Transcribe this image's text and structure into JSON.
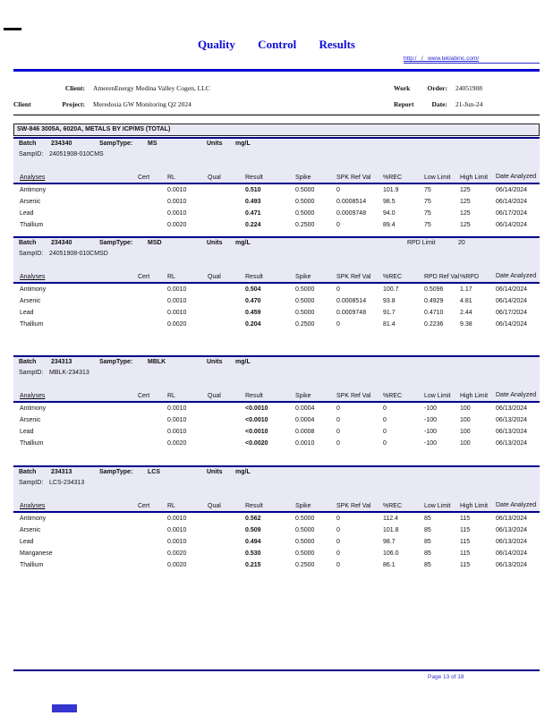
{
  "page": {
    "title": "Quality Control Results",
    "url": "http:/   /   www.teklabinc.com/",
    "page_footer": "Page 13 of 18"
  },
  "header": {
    "client_label": "Client:",
    "client_value": "AmerenEnergy Medina Valley Cogen, LLC",
    "project_label_word1": "Client",
    "project_label_word2": "Project:",
    "project_value": "Meredosia GW Monitoring Q2 2024",
    "work_order_word1": "Work",
    "work_order_word2": "Order:",
    "work_order_value": "24051908",
    "report_date_word1": "Report",
    "report_date_word2": "Date:",
    "report_date_value": "21-Jun-24"
  },
  "sections": [
    {
      "method_bar": "SW-846 3005A, 6020A, METALS BY ICP/MS (TOTAL)",
      "batch_label": "Batch",
      "batch": "234340",
      "samptype_label": "SampType:",
      "samptype": "MS",
      "units_label": "Units",
      "units": "mg/L",
      "rpd_limit_label": "",
      "rpd_limit": "",
      "sampid_label": "SampID:",
      "sampid": "24051908-010CMS",
      "columns": [
        "Analyses",
        "Cert",
        "RL",
        "Qual",
        "Result",
        "Spike",
        "SPK Ref Val",
        "%REC",
        "Low Limit",
        "High Limit",
        "Date Analyzed"
      ],
      "rows": [
        [
          "Antimony",
          "",
          "0.0010",
          "",
          "0.510",
          "0.5000",
          "0",
          "101.9",
          "75",
          "125",
          "06/14/2024"
        ],
        [
          "Arsenic",
          "",
          "0.0010",
          "",
          "0.493",
          "0.5000",
          "0.0008514",
          "98.5",
          "75",
          "125",
          "06/14/2024"
        ],
        [
          "Lead",
          "",
          "0.0010",
          "",
          "0.471",
          "0.5000",
          "0.0009748",
          "94.0",
          "75",
          "125",
          "06/17/2024"
        ],
        [
          "Thallium",
          "",
          "0.0020",
          "",
          "0.224",
          "0.2500",
          "0",
          "89.4",
          "75",
          "125",
          "06/14/2024"
        ]
      ]
    },
    {
      "method_bar": "",
      "batch_label": "Batch",
      "batch": "234340",
      "samptype_label": "SampType:",
      "samptype": "MSD",
      "units_label": "Units",
      "units": "mg/L",
      "rpd_limit_label": "RPD Limit",
      "rpd_limit": "20",
      "sampid_label": "SampID:",
      "sampid": "24051908-010CMSD",
      "columns": [
        "Analyses",
        "Cert",
        "RL",
        "Qual",
        "Result",
        "Spike",
        "SPK Ref Val",
        "%REC",
        "RPD Ref Val",
        "%RPD",
        "Date Analyzed"
      ],
      "rows": [
        [
          "Antimony",
          "",
          "0.0010",
          "",
          "0.504",
          "0.5000",
          "0",
          "100.7",
          "0.5096",
          "1.17",
          "06/14/2024"
        ],
        [
          "Arsenic",
          "",
          "0.0010",
          "",
          "0.470",
          "0.5000",
          "0.0008514",
          "93.8",
          "0.4929",
          "4.81",
          "06/14/2024"
        ],
        [
          "Lead",
          "",
          "0.0010",
          "",
          "0.459",
          "0.5000",
          "0.0009748",
          "91.7",
          "0.4710",
          "2.44",
          "06/17/2024"
        ],
        [
          "Thallium",
          "",
          "0.0020",
          "",
          "0.204",
          "0.2500",
          "0",
          "81.4",
          "0.2236",
          "9.38",
          "06/14/2024"
        ]
      ]
    },
    {
      "method_bar": "",
      "batch_label": "Batch",
      "batch": "234313",
      "samptype_label": "SampType:",
      "samptype": "MBLK",
      "units_label": "Units",
      "units": "mg/L",
      "rpd_limit_label": "",
      "rpd_limit": "",
      "sampid_label": "SampID:",
      "sampid": "MBLK-234313",
      "columns": [
        "Analyses",
        "Cert",
        "RL",
        "Qual",
        "Result",
        "Spike",
        "SPK Ref Val",
        "%REC",
        "Low Limit",
        "High Limit",
        "Date Analyzed"
      ],
      "rows": [
        [
          "Antimony",
          "",
          "0.0010",
          "",
          "<0.0010",
          "0.0004",
          "0",
          "0",
          "-100",
          "100",
          "06/13/2024"
        ],
        [
          "Arsenic",
          "",
          "0.0010",
          "",
          "<0.0010",
          "0.0004",
          "0",
          "0",
          "-100",
          "100",
          "06/13/2024"
        ],
        [
          "Lead",
          "",
          "0.0010",
          "",
          "<0.0010",
          "0.0008",
          "0",
          "0",
          "-100",
          "100",
          "06/13/2024"
        ],
        [
          "Thallium",
          "",
          "0.0020",
          "",
          "<0.0020",
          "0.0010",
          "0",
          "0",
          "-100",
          "100",
          "06/13/2024"
        ]
      ]
    },
    {
      "method_bar": "",
      "batch_label": "Batch",
      "batch": "234313",
      "samptype_label": "SampType:",
      "samptype": "LCS",
      "units_label": "Units",
      "units": "mg/L",
      "rpd_limit_label": "",
      "rpd_limit": "",
      "sampid_label": "SampID:",
      "sampid": "LCS-234313",
      "columns": [
        "Analyses",
        "Cert",
        "RL",
        "Qual",
        "Result",
        "Spike",
        "SPK Ref Val",
        "%REC",
        "Low Limit",
        "High Limit",
        "Date Analyzed"
      ],
      "rows": [
        [
          "Antimony",
          "",
          "0.0010",
          "",
          "0.562",
          "0.5000",
          "0",
          "112.4",
          "85",
          "115",
          "06/13/2024"
        ],
        [
          "Arsenic",
          "",
          "0.0010",
          "",
          "0.509",
          "0.5000",
          "0",
          "101.8",
          "85",
          "115",
          "06/13/2024"
        ],
        [
          "Lead",
          "",
          "0.0010",
          "",
          "0.494",
          "0.5000",
          "0",
          "98.7",
          "85",
          "115",
          "06/13/2024"
        ],
        [
          "Manganese",
          "",
          "0.0020",
          "",
          "0.530",
          "0.5000",
          "0",
          "106.0",
          "85",
          "115",
          "06/14/2024"
        ],
        [
          "Thallium",
          "",
          "0.0020",
          "",
          "0.215",
          "0.2500",
          "0",
          "86.1",
          "85",
          "115",
          "06/13/2024"
        ]
      ]
    }
  ],
  "colors": {
    "title_blue": "#0d0dd6",
    "navy_rule": "#00008b",
    "link_blue": "#2424d8",
    "section_header_bg": "#e9e9f6",
    "footer_stamp_blue": "#3535cf"
  }
}
